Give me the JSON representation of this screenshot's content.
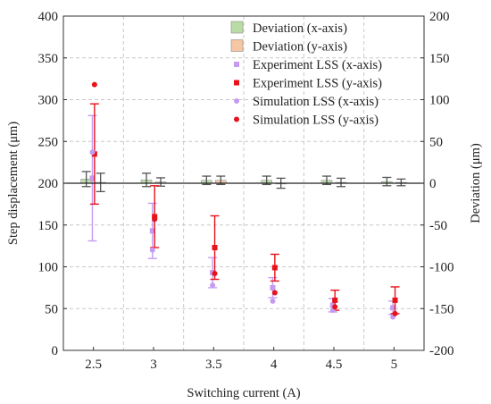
{
  "chart_data": {
    "type": "bar",
    "xlabel": "Switching current (A)",
    "ylabel": "Step displacement (μm)",
    "y2label": "Deviation (μm)",
    "categories": [
      "2.5",
      "3",
      "3.5",
      "4",
      "4.5",
      "5"
    ],
    "ylim": [
      0,
      400
    ],
    "y2lim": [
      -200,
      200
    ],
    "yticks": [
      "0",
      "50",
      "100",
      "150",
      "200",
      "250",
      "300",
      "350",
      "400"
    ],
    "y2ticks": [
      "-200",
      "-150",
      "-100",
      "-50",
      "0",
      "50",
      "100",
      "150",
      "200"
    ],
    "grid": true,
    "legend_position": "top-right",
    "deviation_series": [
      {
        "name": "Deviation (x-axis)",
        "axis": "right",
        "color": "#b9dca5",
        "error_color": "#555555",
        "values": [
          5,
          4,
          3.5,
          3.5,
          3.5,
          2
        ],
        "errors": [
          9,
          8,
          5,
          5,
          5,
          5
        ]
      },
      {
        "name": "Deviation (y-axis)",
        "axis": "right",
        "color": "#f7c6a3",
        "error_color": "#555555",
        "values": [
          1,
          1.5,
          3.5,
          0,
          1,
          1
        ],
        "errors": [
          11,
          5,
          5,
          6,
          5,
          4
        ]
      }
    ],
    "point_series": [
      {
        "name": "Experiment LSS (x-axis)",
        "marker": "square",
        "color": "#c59bf2",
        "errorbar": true,
        "values": [
          206,
          143,
          93,
          75,
          54,
          51
        ],
        "errors": [
          75,
          33,
          18,
          12,
          8,
          8
        ]
      },
      {
        "name": "Experiment LSS (y-axis)",
        "marker": "square",
        "color": "#e8121a",
        "errorbar": true,
        "values": [
          235,
          160,
          123,
          99,
          60,
          60
        ],
        "errors": [
          60,
          37,
          38,
          16,
          12,
          16
        ]
      },
      {
        "name": "Simulation LSS (x-axis)",
        "marker": "circle",
        "color": "#c59bf2",
        "errorbar": false,
        "values": [
          237,
          120,
          78,
          59,
          48,
          40
        ],
        "errors": []
      },
      {
        "name": "Simulation LSS (y-axis)",
        "marker": "circle",
        "color": "#e8121a",
        "errorbar": false,
        "values": [
          318,
          157,
          92,
          69,
          52,
          44
        ],
        "errors": []
      }
    ]
  }
}
